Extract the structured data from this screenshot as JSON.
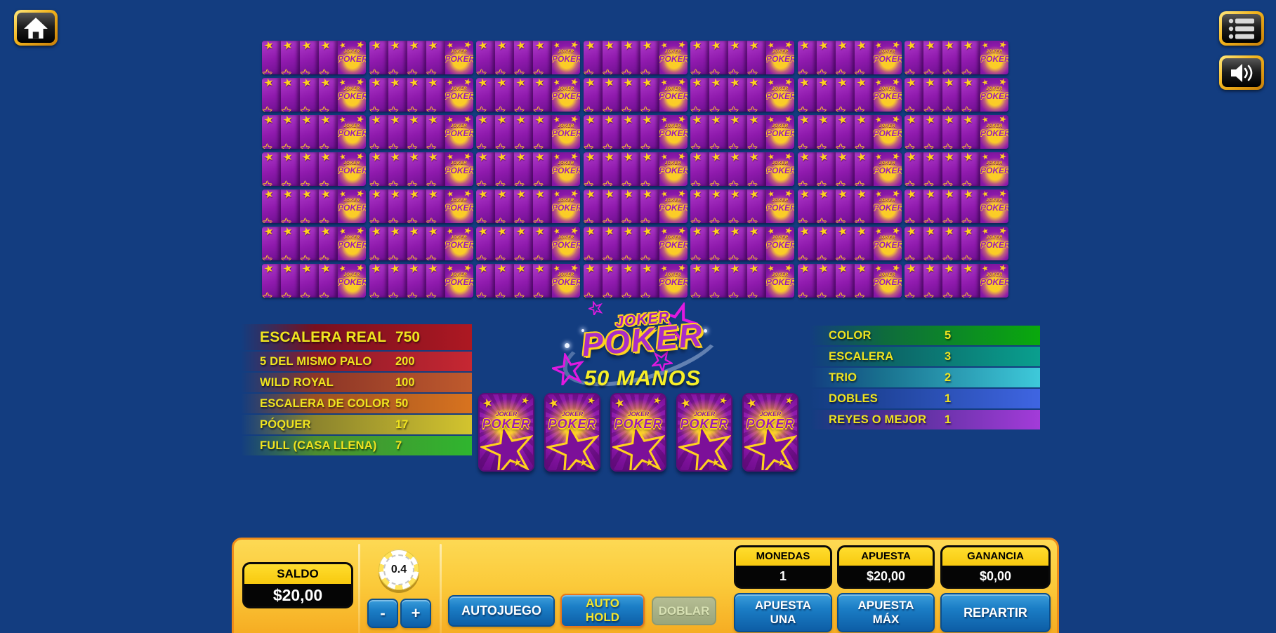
{
  "colors": {
    "background": "#133d80",
    "bar_gold_top": "#fdd954",
    "bar_gold_bottom": "#f5a81f",
    "button_blue": "#1b7ec6",
    "button_disabled": "#9aa67c",
    "card_purple": "#8f1aad",
    "star_yellow": "#ffd21e",
    "paytable_text_yellow": "#f0e41f"
  },
  "topbar": {
    "home_button": {
      "icon": "home-icon"
    },
    "menu_button": {
      "icon": "menu-icon"
    },
    "sound_button": {
      "icon": "speaker-icon"
    }
  },
  "game": {
    "logo_top": "JOKER",
    "logo_main": "POKER",
    "subtitle": "50 MANOS",
    "card_logo": {
      "top": "JOKER",
      "bottom": "POKER"
    },
    "hands_grid": {
      "rows": 7,
      "cols": 7,
      "cards_per_hand": 5
    },
    "main_hand": {
      "cards": 5
    }
  },
  "paytable_left": {
    "rows": [
      {
        "label": "ESCALERA REAL",
        "value": "750",
        "color_mid": "#77101f",
        "color_end": "#ad1822",
        "big": true
      },
      {
        "label": "5 DEL MISMO PALO",
        "value": "200",
        "color_mid": "#8c1a28",
        "color_end": "#c62732",
        "big": false
      },
      {
        "label": "WILD ROYAL",
        "value": "100",
        "color_mid": "#8c3527",
        "color_end": "#bf5a2d",
        "big": false
      },
      {
        "label": "ESCALERA DE COLOR",
        "value": "50",
        "color_mid": "#9a4f22",
        "color_end": "#d8731f",
        "big": false
      },
      {
        "label": "PÓQUER",
        "value": "17",
        "color_mid": "#8c842d",
        "color_end": "#d3c42e",
        "big": false
      },
      {
        "label": "FULL (CASA LLENA)",
        "value": "7",
        "color_mid": "#4c8c30",
        "color_end": "#2fb52f",
        "big": false
      }
    ]
  },
  "paytable_right": {
    "rows": [
      {
        "label": "COLOR",
        "value": "5",
        "color_mid": "#0e6b3d",
        "color_end": "#0aa90c",
        "big": false
      },
      {
        "label": "ESCALERA",
        "value": "3",
        "color_mid": "#0c6365",
        "color_end": "#0a9f8e",
        "big": false
      },
      {
        "label": "TRIO",
        "value": "2",
        "color_mid": "#19728f",
        "color_end": "#3ec9da",
        "big": false
      },
      {
        "label": "DOBLES",
        "value": "1",
        "color_mid": "#20459c",
        "color_end": "#3f65e2",
        "big": false
      },
      {
        "label": "REYES O MEJOR",
        "value": "1",
        "color_mid": "#4c2f92",
        "color_end": "#a33bd9",
        "big": false
      }
    ]
  },
  "controls": {
    "saldo": {
      "label": "SALDO",
      "value": "$20,00"
    },
    "chip": {
      "value": "0.4"
    },
    "decrease_label": "-",
    "increase_label": "+",
    "autoplay_label": "AUTOJUEGO",
    "autohold": {
      "lines": [
        "AUTO",
        "HOLD"
      ]
    },
    "double_label": "DOBLAR",
    "monedas": {
      "label": "MONEDAS",
      "value": "1"
    },
    "apuesta": {
      "label": "APUESTA",
      "value": "$20,00"
    },
    "ganancia": {
      "label": "GANANCIA",
      "value": "$0,00"
    },
    "bet_one": {
      "lines": [
        "APUESTA",
        "UNA"
      ]
    },
    "bet_max": {
      "lines": [
        "APUESTA",
        "MÁX"
      ]
    },
    "deal_label": "REPARTIR"
  }
}
